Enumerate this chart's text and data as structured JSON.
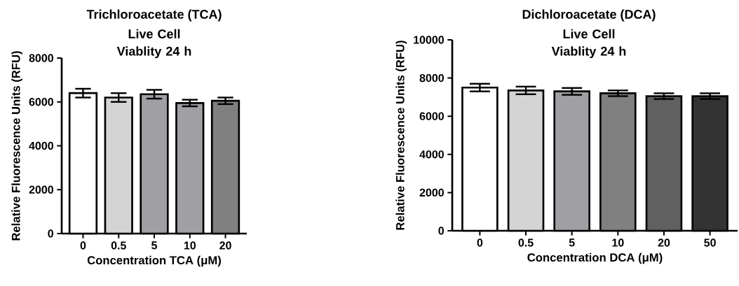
{
  "chart_data": [
    {
      "type": "bar",
      "title": "Trichloroacetate (TCA)",
      "subtitle": "Live Cell Viablity 24 h",
      "xlabel": "Concentration TCA (μM)",
      "ylabel": "Relative Fluorescence Units (RFU)",
      "categories": [
        "0",
        "0.5",
        "5",
        "10",
        "20"
      ],
      "values": [
        6400,
        6200,
        6350,
        5950,
        6050
      ],
      "errors": [
        200,
        200,
        200,
        150,
        150
      ],
      "colors": [
        "#ffffff",
        "#d4d4d4",
        "#a0a0a4",
        "#a0a0a4",
        "#808080"
      ],
      "ylim": [
        0,
        8000
      ],
      "yticks": [
        0,
        2000,
        4000,
        6000,
        8000
      ]
    },
    {
      "type": "bar",
      "title": "Dichloroacetate (DCA)",
      "subtitle": "Live Cell Viablity 24 h",
      "xlabel": "Concentration DCA (μM)",
      "ylabel": "Relative Fluorescence Units (RFU)",
      "categories": [
        "0",
        "0.5",
        "5",
        "10",
        "20",
        "50"
      ],
      "values": [
        7500,
        7350,
        7300,
        7200,
        7050,
        7050
      ],
      "errors": [
        200,
        200,
        180,
        150,
        150,
        150
      ],
      "colors": [
        "#ffffff",
        "#d4d4d4",
        "#a0a0a4",
        "#808080",
        "#606060",
        "#333333"
      ],
      "ylim": [
        0,
        10000
      ],
      "yticks": [
        0,
        2000,
        4000,
        6000,
        8000,
        10000
      ]
    }
  ]
}
